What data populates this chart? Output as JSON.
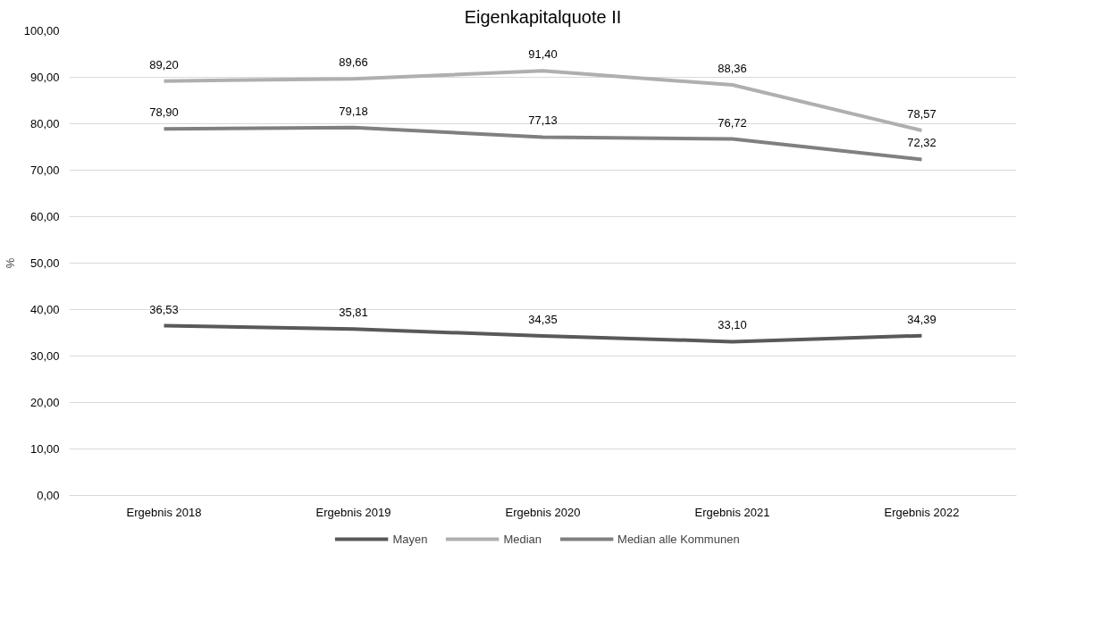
{
  "chart_data": {
    "type": "line",
    "title": "Eigenkapitalquote II",
    "ylabel": "%",
    "categories": [
      "Ergebnis 2018",
      "Ergebnis 2019",
      "Ergebnis 2020",
      "Ergebnis 2021",
      "Ergebnis 2022"
    ],
    "series": [
      {
        "name": "Mayen",
        "color": "#595959",
        "values": [
          36.53,
          35.81,
          34.35,
          33.1,
          34.39
        ],
        "value_labels": [
          "36,53",
          "35,81",
          "34,35",
          "33,10",
          "34,39"
        ]
      },
      {
        "name": "Median",
        "color": "#afafaf",
        "values": [
          89.2,
          89.66,
          91.4,
          88.36,
          78.57
        ],
        "value_labels": [
          "89,20",
          "89,66",
          "91,40",
          "88,36",
          "78,57"
        ]
      },
      {
        "name": "Median alle Kommunen",
        "color": "#808080",
        "values": [
          78.9,
          79.18,
          77.13,
          76.72,
          72.32
        ],
        "value_labels": [
          "78,90",
          "79,18",
          "77,13",
          "76,72",
          "72,32"
        ]
      }
    ],
    "ylim": [
      0,
      100
    ],
    "yticks": [
      {
        "value": 0,
        "label": "0,00"
      },
      {
        "value": 10,
        "label": "10,00"
      },
      {
        "value": 20,
        "label": "20,00"
      },
      {
        "value": 30,
        "label": "30,00"
      },
      {
        "value": 40,
        "label": "40,00"
      },
      {
        "value": 50,
        "label": "50,00"
      },
      {
        "value": 60,
        "label": "60,00"
      },
      {
        "value": 70,
        "label": "70,00"
      },
      {
        "value": 80,
        "label": "80,00"
      },
      {
        "value": 90,
        "label": "90,00"
      },
      {
        "value": 100,
        "label": "100,00"
      }
    ],
    "grid": "y",
    "legend": "bottom",
    "marker": "none",
    "line_style": "solid",
    "data_labels": true
  }
}
